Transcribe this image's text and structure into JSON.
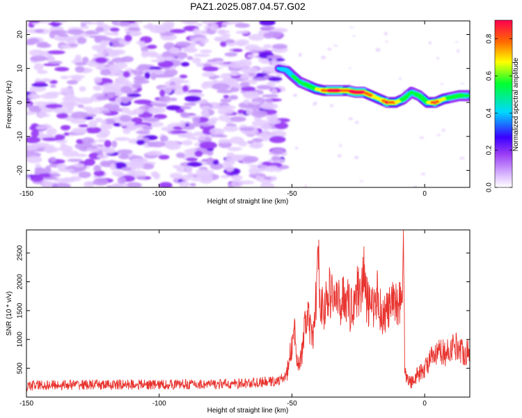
{
  "figure_title": "PAZ1.2025.087.04.57.G02",
  "colors": {
    "snr_line": "#e8332e",
    "colormap": [
      "#ffffff",
      "#e2c8ff",
      "#9a3cf5",
      "#3a00ff",
      "#00d8ff",
      "#00ff30",
      "#ffff00",
      "#ff6a00",
      "#ff0050"
    ]
  },
  "chart_data": [
    {
      "type": "heatmap",
      "title": "PAZ1.2025.087.04.57.G02",
      "xlabel": "Height of straight line (km)",
      "ylabel": "Frequency (Hz)",
      "xlim": [
        -150,
        17
      ],
      "ylim": [
        -25,
        24
      ],
      "x_ticks": [
        -150,
        -100,
        -50,
        0
      ],
      "y_ticks": [
        -20,
        -10,
        0,
        10,
        20
      ],
      "grid": false,
      "colorbar": {
        "label": "Normalized spectral amplitude",
        "range": [
          0.0,
          0.9
        ],
        "ticks": [
          "0.0",
          "0.2",
          "0.4",
          "0.6",
          "0.8"
        ],
        "placement": "right"
      },
      "noise_region_x": [
        -150,
        -53
      ],
      "tracked_ridge": {
        "x": [
          -55,
          -52,
          -50,
          -47,
          -44,
          -41,
          -38,
          -35,
          -32,
          -29,
          -26,
          -23,
          -20,
          -17,
          -14,
          -11,
          -8,
          -5,
          -2,
          1,
          4,
          7,
          10,
          13,
          17
        ],
        "frequency": [
          10,
          9.5,
          8,
          6,
          5,
          4,
          3.5,
          3.5,
          3.5,
          3.5,
          3,
          3,
          2,
          1,
          0,
          0,
          1,
          3,
          2,
          0,
          0,
          1,
          1.5,
          2,
          2
        ],
        "amplitude": [
          0.3,
          0.35,
          0.4,
          0.45,
          0.5,
          0.55,
          0.7,
          0.85,
          0.8,
          0.75,
          0.85,
          0.8,
          0.7,
          0.6,
          0.8,
          0.7,
          0.5,
          0.45,
          0.5,
          0.55,
          0.8,
          0.6,
          0.5,
          0.5,
          0.45
        ]
      }
    },
    {
      "type": "line",
      "xlabel": "Height of straight line (km)",
      "ylabel": "SNR (10 * v/v)",
      "xlim": [
        -150,
        17
      ],
      "ylim": [
        0,
        2900
      ],
      "x_ticks": [
        -150,
        -100,
        -50,
        0
      ],
      "y_ticks": [
        500,
        1000,
        1500,
        2000,
        2500
      ],
      "grid": false,
      "series": [
        {
          "x": [
            -150,
            -140,
            -130,
            -120,
            -110,
            -100,
            -90,
            -80,
            -70,
            -60,
            -55,
            -52,
            -50,
            -49,
            -48,
            -47,
            -46,
            -45,
            -44,
            -43,
            -42,
            -41,
            -40,
            -39,
            -38,
            -36,
            -34,
            -32,
            -30,
            -28,
            -26,
            -24,
            -23,
            -22,
            -20,
            -18,
            -16,
            -14,
            -12,
            -10,
            -9,
            -8.5,
            -8,
            -7.5,
            -7,
            -6,
            -5,
            -4,
            -2,
            0,
            2,
            4,
            6,
            8,
            10,
            12,
            14,
            17
          ],
          "y": [
            200,
            210,
            215,
            210,
            220,
            215,
            225,
            220,
            230,
            260,
            280,
            380,
            900,
            1100,
            700,
            600,
            800,
            1300,
            1400,
            1100,
            1000,
            1700,
            2300,
            1600,
            1500,
            1800,
            1750,
            1600,
            1800,
            1500,
            1800,
            1900,
            2200,
            1700,
            1500,
            1800,
            1400,
            1500,
            1600,
            1650,
            1700,
            1800,
            2850,
            500,
            350,
            300,
            250,
            350,
            400,
            500,
            650,
            700,
            800,
            750,
            850,
            900,
            800,
            750
          ]
        }
      ]
    }
  ]
}
